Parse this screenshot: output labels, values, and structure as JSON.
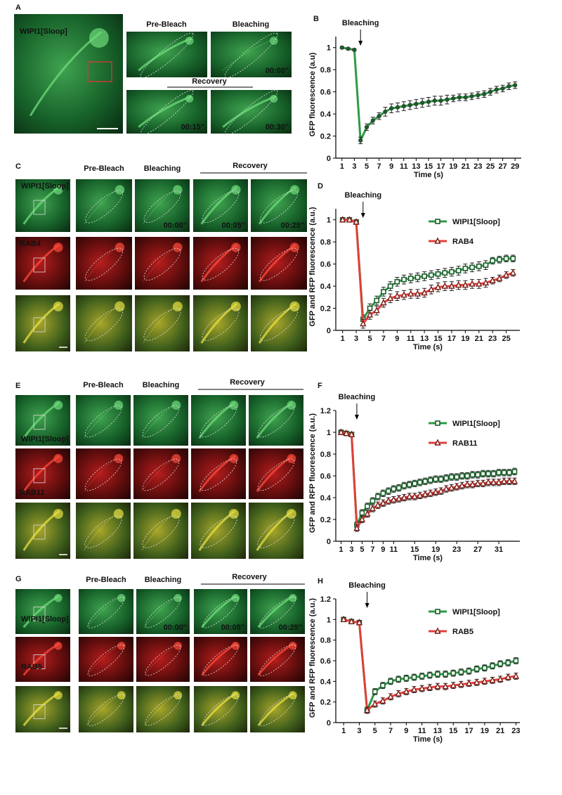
{
  "panels": {
    "A": {
      "label": "A",
      "stain": "WIPI1[Sloop]",
      "columns": [
        "Pre-Bleach",
        "Bleaching"
      ],
      "recovery": "Recovery",
      "times": [
        "00:00''",
        "00:15''",
        "00:30''"
      ]
    },
    "C": {
      "label": "C",
      "columns": [
        "Pre-Bleach",
        "Bleaching",
        "Recovery"
      ],
      "rows": [
        "WIPI1[Sloop]",
        "RAB4"
      ],
      "times": [
        "00:00''",
        "00:05''",
        "00:25''"
      ]
    },
    "E": {
      "label": "E",
      "columns": [
        "Pre-Bleach",
        "Bleaching",
        "Recovery"
      ],
      "rows": [
        "WIPI1[Sloop]",
        "RAB11"
      ]
    },
    "G": {
      "label": "G",
      "columns": [
        "Pre-Bleach",
        "Bleaching",
        "Recovery"
      ],
      "rows": [
        "WIPI1[Sloop]",
        "RAB5"
      ],
      "times": [
        "00:00''",
        "00:05''",
        "00:25''"
      ]
    }
  },
  "chart_data": [
    {
      "type": "line",
      "panel_label": "B",
      "x_label": "Time (s)",
      "y_label": "GFP fluorescence (a.u)",
      "annotation": {
        "text": "Bleaching",
        "x": 4
      },
      "x": [
        1,
        2,
        3,
        4,
        5,
        6,
        7,
        8,
        9,
        10,
        11,
        12,
        13,
        14,
        15,
        16,
        17,
        18,
        19,
        20,
        21,
        22,
        23,
        24,
        25,
        26,
        27,
        28,
        29
      ],
      "xlim": [
        0,
        30
      ],
      "xticks": [
        1,
        3,
        5,
        7,
        9,
        11,
        13,
        15,
        17,
        19,
        21,
        23,
        25,
        27,
        29
      ],
      "ylim": [
        0,
        1.1
      ],
      "yticks": [
        0,
        0.2,
        0.4,
        0.6,
        0.8,
        1
      ],
      "series": [
        {
          "color": "#2e9a44",
          "marker": "circle",
          "values": [
            1,
            0.99,
            0.98,
            0.16,
            0.28,
            0.34,
            0.38,
            0.42,
            0.45,
            0.46,
            0.47,
            0.48,
            0.49,
            0.5,
            0.51,
            0.52,
            0.52,
            0.53,
            0.54,
            0.55,
            0.55,
            0.56,
            0.57,
            0.58,
            0.6,
            0.62,
            0.63,
            0.65,
            0.66
          ],
          "errors": [
            0.01,
            0.01,
            0.01,
            0.03,
            0.03,
            0.03,
            0.03,
            0.04,
            0.04,
            0.04,
            0.04,
            0.04,
            0.04,
            0.04,
            0.04,
            0.04,
            0.04,
            0.04,
            0.03,
            0.03,
            0.03,
            0.03,
            0.03,
            0.03,
            0.03,
            0.03,
            0.03,
            0.03,
            0.03
          ]
        }
      ]
    },
    {
      "type": "line",
      "panel_label": "D",
      "x_label": "Time (s)",
      "y_label": "GFP and RFP fluorescence (a.u.)",
      "annotation": {
        "text": "Bleaching",
        "x": 4
      },
      "legend": "upper right",
      "x": [
        1,
        2,
        3,
        4,
        5,
        6,
        7,
        8,
        9,
        10,
        11,
        12,
        13,
        14,
        15,
        16,
        17,
        18,
        19,
        20,
        21,
        22,
        23,
        24,
        25,
        26
      ],
      "xlim": [
        0,
        27
      ],
      "xticks": [
        1,
        3,
        5,
        7,
        9,
        11,
        13,
        15,
        17,
        19,
        21,
        23,
        25
      ],
      "ylim": [
        0,
        1.1
      ],
      "yticks": [
        0,
        0.2,
        0.4,
        0.6,
        0.8,
        1
      ],
      "series": [
        {
          "name": "WIPI1[Sloop]",
          "color": "#2e9a44",
          "marker": "square",
          "values": [
            1,
            1,
            0.98,
            0.1,
            0.2,
            0.27,
            0.35,
            0.4,
            0.44,
            0.46,
            0.47,
            0.48,
            0.49,
            0.5,
            0.51,
            0.52,
            0.53,
            0.54,
            0.56,
            0.57,
            0.58,
            0.59,
            0.63,
            0.64,
            0.65,
            0.65
          ],
          "errors": [
            0.02,
            0.02,
            0.02,
            0.04,
            0.04,
            0.04,
            0.04,
            0.04,
            0.04,
            0.04,
            0.04,
            0.04,
            0.04,
            0.04,
            0.04,
            0.04,
            0.04,
            0.04,
            0.04,
            0.04,
            0.04,
            0.04,
            0.03,
            0.03,
            0.03,
            0.03
          ]
        },
        {
          "name": "RAB4",
          "color": "#e0403a",
          "marker": "triangle",
          "values": [
            1,
            1,
            0.98,
            0.06,
            0.14,
            0.18,
            0.25,
            0.29,
            0.31,
            0.32,
            0.33,
            0.33,
            0.34,
            0.37,
            0.39,
            0.4,
            0.4,
            0.41,
            0.41,
            0.42,
            0.42,
            0.43,
            0.45,
            0.47,
            0.5,
            0.52
          ],
          "errors": [
            0.02,
            0.02,
            0.02,
            0.04,
            0.04,
            0.04,
            0.04,
            0.04,
            0.04,
            0.04,
            0.04,
            0.04,
            0.04,
            0.04,
            0.04,
            0.04,
            0.04,
            0.04,
            0.04,
            0.04,
            0.04,
            0.04,
            0.03,
            0.03,
            0.03,
            0.03
          ]
        }
      ]
    },
    {
      "type": "line",
      "panel_label": "F",
      "x_label": "Time (s)",
      "y_label": "GFP and RFP fluorescence (a.u.)",
      "annotation": {
        "text": "Bleaching",
        "x": 4
      },
      "legend": "upper right",
      "x": [
        1,
        2,
        3,
        4,
        5,
        6,
        7,
        8,
        9,
        10,
        11,
        12,
        13,
        14,
        15,
        16,
        17,
        18,
        19,
        20,
        21,
        22,
        23,
        24,
        25,
        26,
        27,
        28,
        29,
        30,
        31,
        32,
        33,
        34
      ],
      "xlim": [
        0,
        35
      ],
      "xticks": [
        1,
        3,
        5,
        7,
        9,
        11,
        15,
        19,
        23,
        27,
        31
      ],
      "ylim": [
        0,
        1.2
      ],
      "yticks": [
        0,
        0.2,
        0.4,
        0.6,
        0.8,
        1,
        1.2
      ],
      "series": [
        {
          "name": "WIPI1[Sloop]",
          "color": "#2e9a44",
          "marker": "square",
          "values": [
            1,
            0.99,
            0.98,
            0.15,
            0.26,
            0.32,
            0.37,
            0.41,
            0.44,
            0.46,
            0.48,
            0.49,
            0.51,
            0.52,
            0.53,
            0.54,
            0.55,
            0.56,
            0.57,
            0.57,
            0.58,
            0.59,
            0.59,
            0.6,
            0.6,
            0.61,
            0.61,
            0.62,
            0.62,
            0.62,
            0.63,
            0.63,
            0.63,
            0.64
          ],
          "errors": [
            0.02,
            0.02,
            0.02,
            0.03,
            0.03,
            0.03,
            0.03,
            0.03,
            0.03,
            0.03,
            0.03,
            0.03,
            0.03,
            0.03,
            0.03,
            0.03,
            0.03,
            0.03,
            0.03,
            0.03,
            0.03,
            0.03,
            0.03,
            0.03,
            0.03,
            0.03,
            0.03,
            0.03,
            0.03,
            0.03,
            0.03,
            0.03,
            0.03,
            0.03
          ]
        },
        {
          "name": "RAB11",
          "color": "#e0403a",
          "marker": "triangle",
          "values": [
            1,
            0.99,
            0.98,
            0.12,
            0.2,
            0.25,
            0.3,
            0.33,
            0.35,
            0.37,
            0.38,
            0.39,
            0.4,
            0.41,
            0.41,
            0.42,
            0.43,
            0.44,
            0.45,
            0.46,
            0.48,
            0.49,
            0.5,
            0.51,
            0.52,
            0.52,
            0.53,
            0.53,
            0.54,
            0.54,
            0.54,
            0.55,
            0.55,
            0.55
          ],
          "errors": [
            0.02,
            0.02,
            0.02,
            0.03,
            0.03,
            0.03,
            0.03,
            0.03,
            0.03,
            0.03,
            0.03,
            0.03,
            0.03,
            0.03,
            0.03,
            0.03,
            0.03,
            0.03,
            0.03,
            0.03,
            0.03,
            0.03,
            0.03,
            0.03,
            0.03,
            0.03,
            0.03,
            0.03,
            0.03,
            0.03,
            0.03,
            0.03,
            0.03,
            0.03
          ]
        }
      ]
    },
    {
      "type": "line",
      "panel_label": "H",
      "x_label": "Time (s)",
      "y_label": "GFP and RFP fluorescence (a.u.)",
      "annotation": {
        "text": "Bleaching",
        "x": 4
      },
      "legend": "upper right",
      "x": [
        1,
        2,
        3,
        4,
        5,
        6,
        7,
        8,
        9,
        10,
        11,
        12,
        13,
        14,
        15,
        16,
        17,
        18,
        19,
        20,
        21,
        22,
        23
      ],
      "xlim": [
        0,
        23.5
      ],
      "xticks": [
        1,
        3,
        5,
        7,
        9,
        11,
        13,
        15,
        17,
        19,
        21,
        23
      ],
      "ylim": [
        0,
        1.2
      ],
      "yticks": [
        0,
        0.2,
        0.4,
        0.6,
        0.8,
        1,
        1.2
      ],
      "series": [
        {
          "name": "WIPI1[Sloop]",
          "color": "#2e9a44",
          "marker": "square",
          "values": [
            1,
            0.98,
            0.97,
            0.12,
            0.3,
            0.36,
            0.4,
            0.42,
            0.43,
            0.44,
            0.45,
            0.46,
            0.47,
            0.47,
            0.48,
            0.49,
            0.5,
            0.52,
            0.53,
            0.55,
            0.57,
            0.58,
            0.6
          ],
          "errors": [
            0.02,
            0.02,
            0.02,
            0.03,
            0.03,
            0.03,
            0.03,
            0.03,
            0.03,
            0.03,
            0.03,
            0.03,
            0.03,
            0.03,
            0.03,
            0.03,
            0.03,
            0.03,
            0.03,
            0.03,
            0.03,
            0.03,
            0.03
          ]
        },
        {
          "name": "RAB5",
          "color": "#e0403a",
          "marker": "triangle",
          "values": [
            1,
            0.98,
            0.97,
            0.12,
            0.18,
            0.21,
            0.25,
            0.28,
            0.3,
            0.32,
            0.33,
            0.34,
            0.35,
            0.35,
            0.36,
            0.37,
            0.38,
            0.39,
            0.4,
            0.41,
            0.42,
            0.44,
            0.45
          ],
          "errors": [
            0.02,
            0.02,
            0.02,
            0.03,
            0.03,
            0.03,
            0.03,
            0.03,
            0.03,
            0.03,
            0.03,
            0.03,
            0.03,
            0.03,
            0.03,
            0.03,
            0.03,
            0.03,
            0.03,
            0.03,
            0.03,
            0.03,
            0.03
          ]
        }
      ]
    }
  ]
}
